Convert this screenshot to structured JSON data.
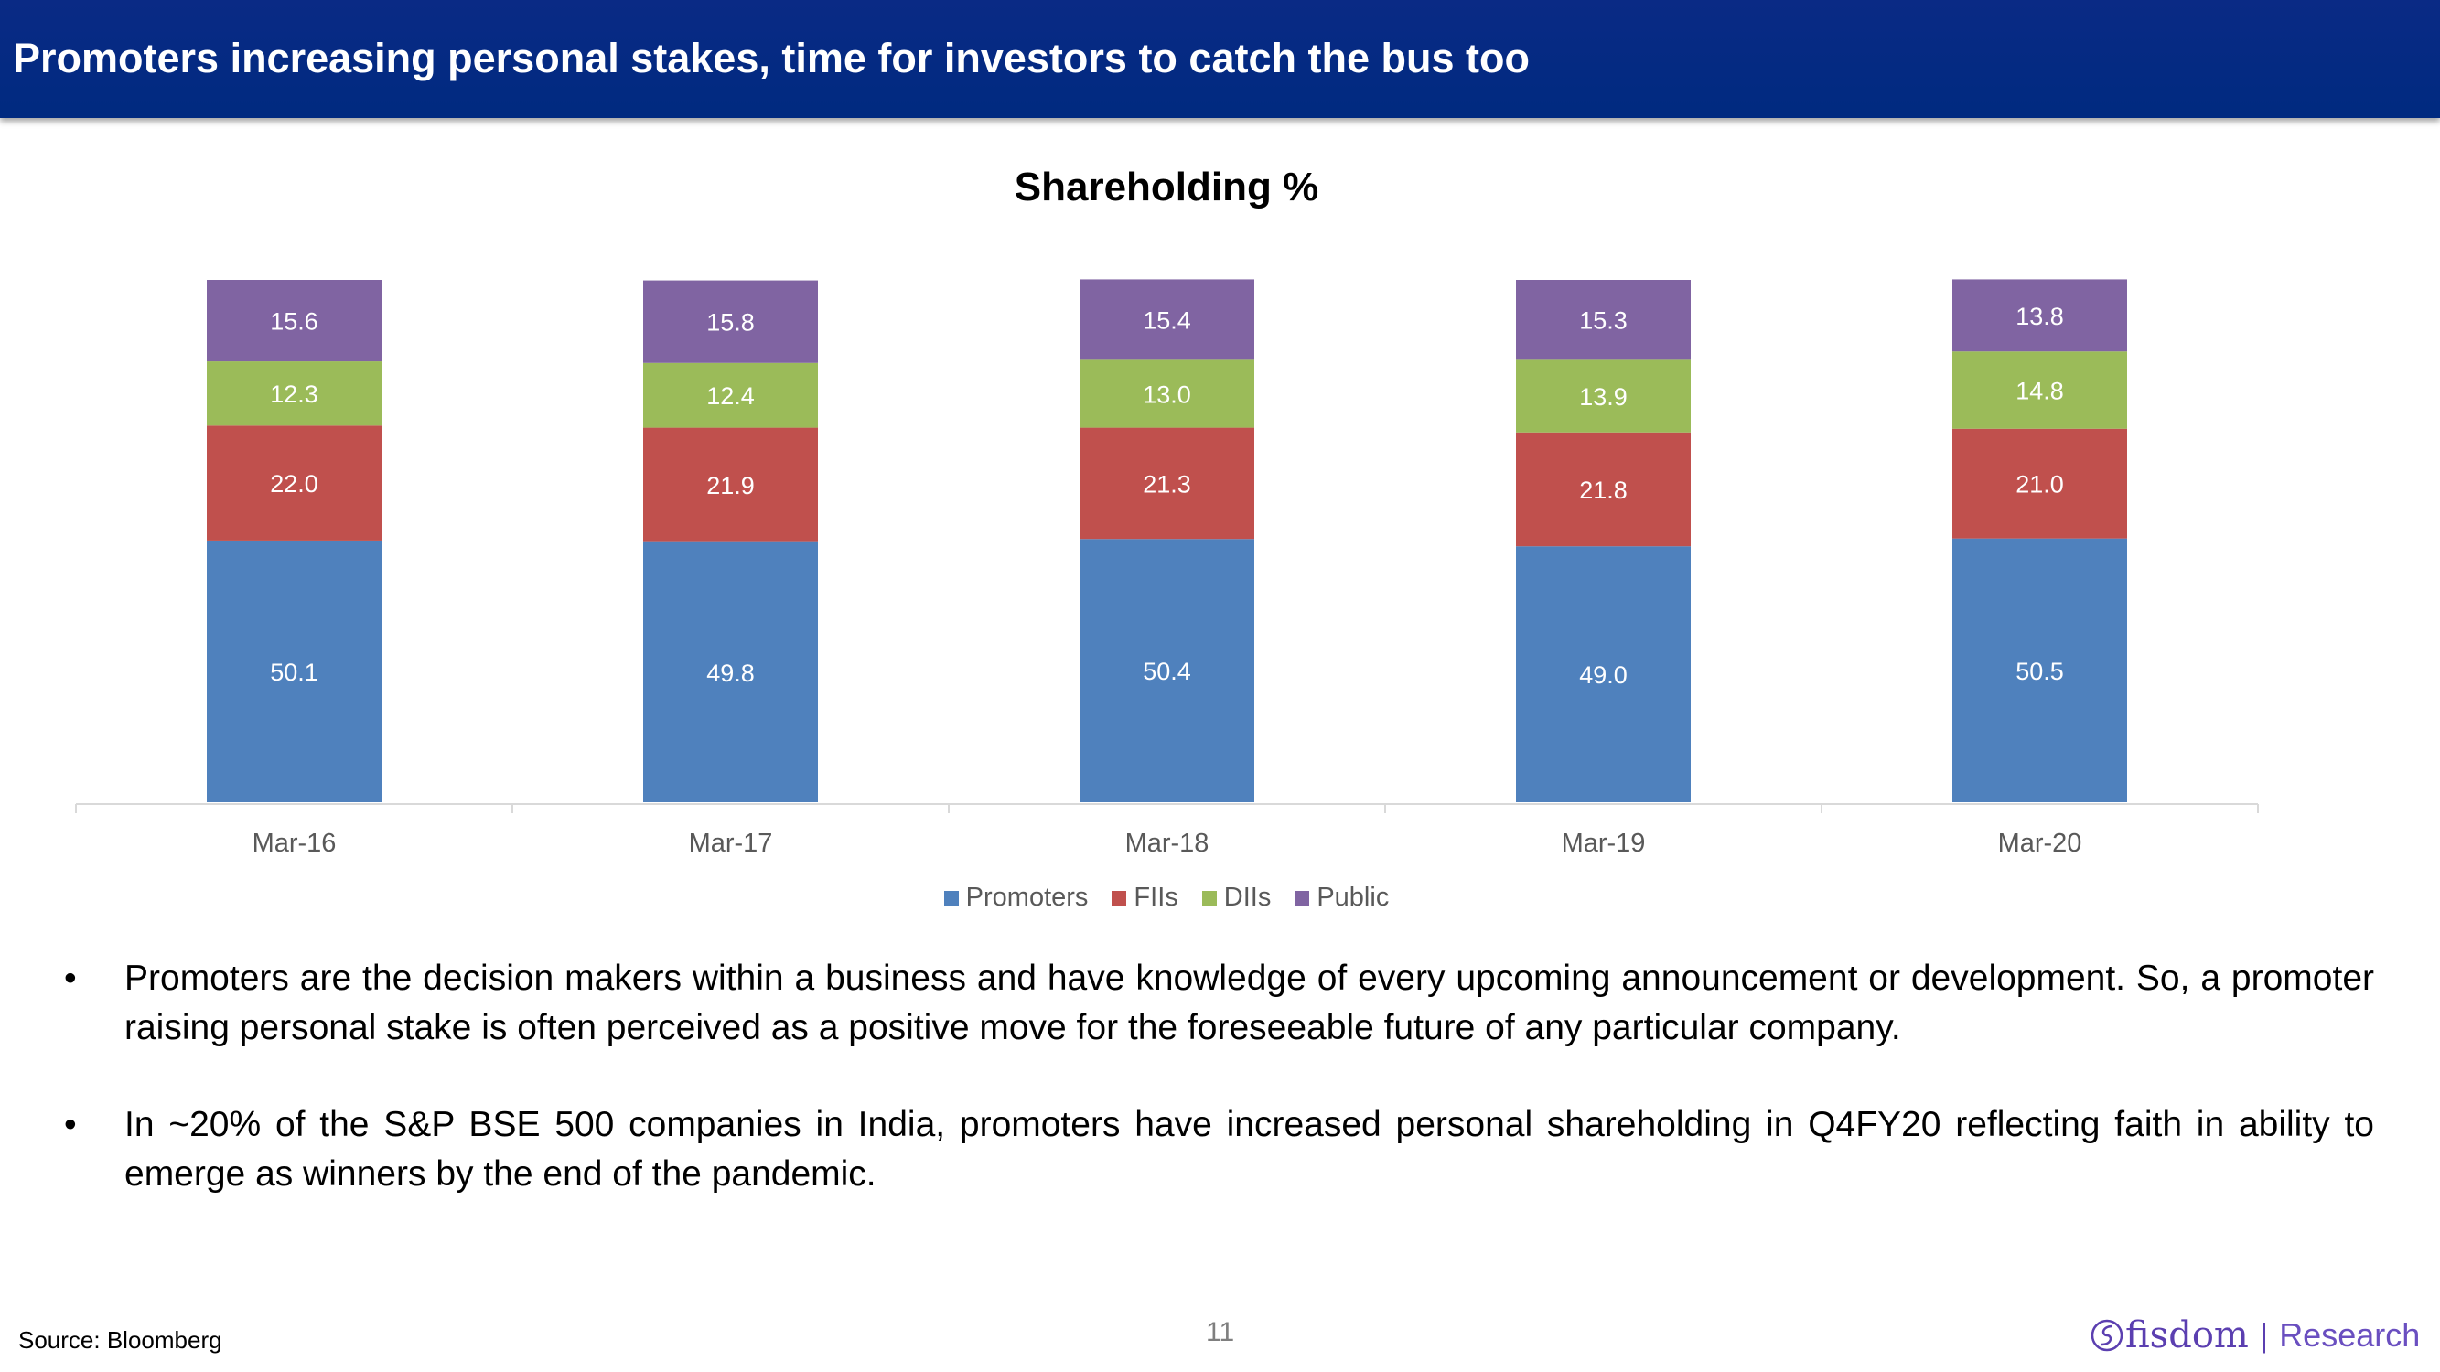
{
  "header": {
    "title": "Promoters increasing personal stakes, time for investors to catch the bus too"
  },
  "chart_data": {
    "type": "bar",
    "stacked": true,
    "title": "Shareholding %",
    "categories": [
      "Mar-16",
      "Mar-17",
      "Mar-18",
      "Mar-19",
      "Mar-20"
    ],
    "series": [
      {
        "name": "Promoters",
        "color": "#4f81bd",
        "values": [
          50.1,
          49.8,
          50.4,
          49.0,
          50.5
        ],
        "labels": [
          "50.1",
          "49.8",
          "50.4",
          "49.0",
          "50.5"
        ]
      },
      {
        "name": "FIIs",
        "color": "#c0504d",
        "values": [
          22.0,
          21.9,
          21.3,
          21.8,
          21.0
        ],
        "labels": [
          "22.0",
          "21.9",
          "21.3",
          "21.8",
          "21.0"
        ]
      },
      {
        "name": "DIIs",
        "color": "#9bbb59",
        "values": [
          12.3,
          12.4,
          13.0,
          13.9,
          14.8
        ],
        "labels": [
          "12.3",
          "12.4",
          "13.0",
          "13.9",
          "14.8"
        ]
      },
      {
        "name": "Public",
        "color": "#8064a2",
        "values": [
          15.6,
          15.8,
          15.4,
          15.3,
          13.8
        ],
        "labels": [
          "15.6",
          "15.8",
          "15.4",
          "15.3",
          "13.8"
        ]
      }
    ],
    "ylim": [
      0,
      100
    ],
    "grid": false,
    "legend": "bottom"
  },
  "bullets": [
    "Promoters are the decision makers within a business and have knowledge of every upcoming announcement or development. So, a promoter raising personal stake is often perceived as a positive move for the foreseeable future of any particular company.",
    "In ~20% of the S&P BSE 500 companies in India, promoters have increased personal shareholding in Q4FY20 reflecting faith in ability to emerge as winners by the end of the pandemic."
  ],
  "bullet_char": "•",
  "footer": {
    "source": "Source: Bloomberg",
    "page": "11",
    "logo": "fisdom",
    "logo_sep": "|",
    "logo_suffix": "Research"
  }
}
